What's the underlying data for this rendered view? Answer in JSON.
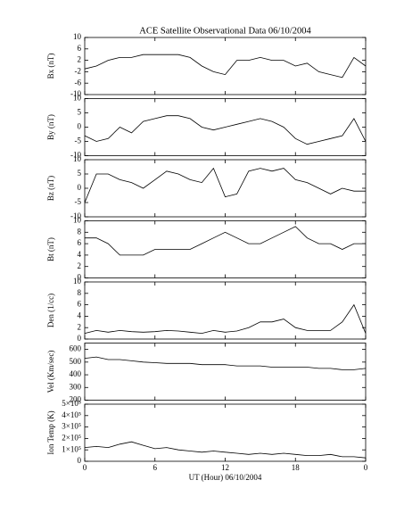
{
  "chart_data": [
    {
      "type": "line",
      "title": "ACE Satellite Observational Data   06/10/2004",
      "ylabel": "Bx (nT)",
      "color": "#000000",
      "x": [
        0,
        1,
        2,
        3,
        4,
        5,
        6,
        7,
        8,
        9,
        10,
        11,
        12,
        13,
        14,
        15,
        16,
        17,
        18,
        19,
        20,
        21,
        22,
        23,
        24
      ],
      "values": [
        -1,
        0,
        2,
        3,
        3,
        4,
        4,
        4,
        4,
        3,
        0,
        -2,
        -3,
        2,
        2,
        3,
        2,
        2,
        0,
        1,
        -2,
        -3,
        -4,
        3,
        0
      ],
      "xlim": [
        0,
        24
      ],
      "ylim": [
        -10,
        10
      ],
      "yticks": [
        -10,
        -6,
        -2,
        2,
        6,
        10
      ]
    },
    {
      "type": "line",
      "ylabel": "By (nT)",
      "color": "#000000",
      "x": [
        0,
        1,
        2,
        3,
        4,
        5,
        6,
        7,
        8,
        9,
        10,
        11,
        12,
        13,
        14,
        15,
        16,
        17,
        18,
        19,
        20,
        21,
        22,
        23,
        24
      ],
      "values": [
        -3,
        -5,
        -4,
        0,
        -2,
        2,
        3,
        4,
        4,
        3,
        0,
        -1,
        0,
        1,
        2,
        3,
        2,
        0,
        -4,
        -6,
        -5,
        -4,
        -3,
        3,
        -5
      ],
      "xlim": [
        0,
        24
      ],
      "ylim": [
        -10,
        10
      ],
      "yticks": [
        -10,
        -5,
        0,
        5,
        10
      ]
    },
    {
      "type": "line",
      "ylabel": "Bz (nT)",
      "color": "#000000",
      "x": [
        0,
        1,
        2,
        3,
        4,
        5,
        6,
        7,
        8,
        9,
        10,
        11,
        12,
        13,
        14,
        15,
        16,
        17,
        18,
        19,
        20,
        21,
        22,
        23,
        24
      ],
      "values": [
        -5,
        5,
        5,
        3,
        2,
        0,
        3,
        6,
        5,
        3,
        2,
        7,
        -3,
        -2,
        6,
        7,
        6,
        7,
        3,
        2,
        0,
        -2,
        0,
        -1,
        -1
      ],
      "xlim": [
        0,
        24
      ],
      "ylim": [
        -10,
        10
      ],
      "yticks": [
        -10,
        -5,
        0,
        5,
        10
      ]
    },
    {
      "type": "line",
      "ylabel": "Bt (nT)",
      "color": "#000000",
      "x": [
        0,
        1,
        2,
        3,
        4,
        5,
        6,
        7,
        8,
        9,
        10,
        11,
        12,
        13,
        14,
        15,
        16,
        17,
        18,
        19,
        20,
        21,
        22,
        23,
        24
      ],
      "values": [
        7,
        7,
        6,
        4,
        4,
        4,
        5,
        5,
        5,
        5,
        6,
        7,
        8,
        7,
        6,
        6,
        7,
        8,
        9,
        7,
        6,
        6,
        5,
        6,
        6
      ],
      "xlim": [
        0,
        24
      ],
      "ylim": [
        0,
        10
      ],
      "yticks": [
        0,
        2,
        4,
        6,
        8,
        10
      ]
    },
    {
      "type": "line",
      "ylabel": "Den (1/cc)",
      "color": "#000000",
      "x": [
        0,
        1,
        2,
        3,
        4,
        5,
        6,
        7,
        8,
        9,
        10,
        11,
        12,
        13,
        14,
        15,
        16,
        17,
        18,
        19,
        20,
        21,
        22,
        23,
        24
      ],
      "values": [
        1,
        1.5,
        1.2,
        1.5,
        1.3,
        1.2,
        1.3,
        1.5,
        1.4,
        1.2,
        1,
        1.5,
        1.2,
        1.4,
        2,
        3,
        3,
        3.5,
        2,
        1.5,
        1.5,
        1.5,
        3,
        6,
        1
      ],
      "xlim": [
        0,
        24
      ],
      "ylim": [
        0,
        10
      ],
      "yticks": [
        0,
        2,
        4,
        6,
        8,
        10
      ]
    },
    {
      "type": "line",
      "ylabel": "Vel (Km/sec)",
      "color": "#000000",
      "x": [
        0,
        1,
        2,
        3,
        4,
        5,
        6,
        7,
        8,
        9,
        10,
        11,
        12,
        13,
        14,
        15,
        16,
        17,
        18,
        19,
        20,
        21,
        22,
        23,
        24
      ],
      "values": [
        530,
        540,
        520,
        520,
        510,
        500,
        495,
        490,
        490,
        490,
        480,
        480,
        480,
        470,
        470,
        470,
        460,
        460,
        460,
        460,
        450,
        450,
        440,
        440,
        450
      ],
      "xlim": [
        0,
        24
      ],
      "ylim": [
        200,
        650
      ],
      "yticks": [
        200,
        300,
        400,
        500,
        600
      ]
    },
    {
      "type": "line",
      "ylabel": "Ion Temp (K)",
      "xlabel": "UT (Hour)  06/10/2004",
      "color": "#000000",
      "x": [
        0,
        1,
        2,
        3,
        4,
        5,
        6,
        7,
        8,
        9,
        10,
        11,
        12,
        13,
        14,
        15,
        16,
        17,
        18,
        19,
        20,
        21,
        22,
        23,
        24
      ],
      "values": [
        120000,
        130000,
        120000,
        150000,
        170000,
        140000,
        110000,
        120000,
        100000,
        90000,
        80000,
        90000,
        80000,
        70000,
        60000,
        70000,
        60000,
        70000,
        60000,
        50000,
        50000,
        60000,
        40000,
        40000,
        30000
      ],
      "xlim": [
        0,
        24
      ],
      "ylim": [
        0,
        500000
      ],
      "yticks": [
        0,
        {
          "value": 100000,
          "label": "1×10⁵"
        },
        {
          "value": 200000,
          "label": "2×10⁵"
        },
        {
          "value": 300000,
          "label": "3×10⁵"
        },
        {
          "value": 400000,
          "label": "4×10⁵"
        },
        {
          "value": 500000,
          "label": "5×10⁵"
        }
      ],
      "xticks": [
        0,
        6,
        12,
        18,
        {
          "value": 24,
          "label": "0"
        }
      ]
    }
  ]
}
